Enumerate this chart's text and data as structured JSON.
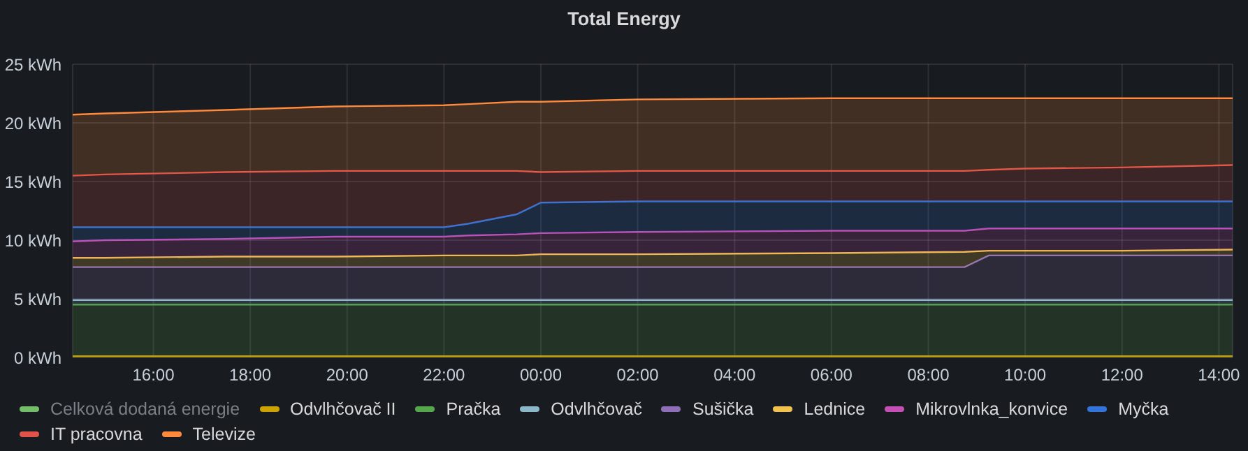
{
  "chart_data": {
    "type": "area",
    "title": "Total Energy",
    "stacked": true,
    "x": [
      "--01-01T14:20",
      "--01-01T15:00",
      "--01-01T17:30",
      "--01-01T19:45",
      "--01-01T22:00",
      "--01-01T22:30",
      "--01-01T23:30",
      "--01-02T00:00",
      "--01-02T02:00",
      "--01-02T06:00",
      "--01-02T08:45",
      "--01-02T09:15",
      "--01-02T10:00",
      "--01-02T12:00",
      "--01-02T14:17"
    ],
    "xlim": [
      "--01-01T14:20",
      "--01-02T14:17"
    ],
    "xticks": [
      {
        "value": "--01-01T16:00",
        "label": "16:00"
      },
      {
        "value": "--01-01T18:00",
        "label": "18:00"
      },
      {
        "value": "--01-01T20:00",
        "label": "20:00"
      },
      {
        "value": "--01-01T22:00",
        "label": "22:00"
      },
      {
        "value": "--01-02T00:00",
        "label": "00:00"
      },
      {
        "value": "--01-02T02:00",
        "label": "02:00"
      },
      {
        "value": "--01-02T04:00",
        "label": "04:00"
      },
      {
        "value": "--01-02T06:00",
        "label": "06:00"
      },
      {
        "value": "--01-02T08:00",
        "label": "08:00"
      },
      {
        "value": "--01-02T10:00",
        "label": "10:00"
      },
      {
        "value": "--01-02T12:00",
        "label": "12:00"
      },
      {
        "value": "--01-02T14:00",
        "label": "14:00"
      }
    ],
    "ylim": [
      0,
      25
    ],
    "yticks": [
      {
        "value": 0,
        "label": "0 kWh"
      },
      {
        "value": 5,
        "label": "5 kWh"
      },
      {
        "value": 10,
        "label": "10 kWh"
      },
      {
        "value": 15,
        "label": "15 kWh"
      },
      {
        "value": 20,
        "label": "20 kWh"
      },
      {
        "value": 25,
        "label": "25 kWh"
      }
    ],
    "grid": true,
    "legend": "bottom",
    "series": [
      {
        "name": "Celková dodaná energie",
        "color": "#73bf69",
        "values": [
          null,
          null,
          null,
          null,
          null,
          null,
          null,
          null,
          null,
          null,
          null,
          null,
          null,
          null,
          null
        ]
      },
      {
        "name": "Odvlhčovač II",
        "color": "#cca300",
        "values": [
          0.1,
          0.1,
          0.1,
          0.1,
          0.1,
          0.1,
          0.1,
          0.1,
          0.1,
          0.1,
          0.1,
          0.1,
          0.1,
          0.1,
          0.1
        ]
      },
      {
        "name": "Pračka",
        "color": "#56a64b",
        "values": [
          4.4,
          4.4,
          4.4,
          4.4,
          4.4,
          4.4,
          4.4,
          4.4,
          4.4,
          4.4,
          4.4,
          4.4,
          4.4,
          4.4,
          4.4
        ]
      },
      {
        "name": "Odvlhčovač",
        "color": "#8ab8c8",
        "values": [
          0.4,
          0.4,
          0.4,
          0.4,
          0.4,
          0.4,
          0.4,
          0.4,
          0.4,
          0.4,
          0.4,
          0.4,
          0.4,
          0.4,
          0.4
        ]
      },
      {
        "name": "Sušička",
        "color": "#8f6fb8",
        "values": [
          2.8,
          2.8,
          2.8,
          2.8,
          2.8,
          2.8,
          2.8,
          2.8,
          2.8,
          2.8,
          2.8,
          3.8,
          3.8,
          3.8,
          3.8
        ]
      },
      {
        "name": "Lednice",
        "color": "#f2c14e",
        "values": [
          0.8,
          0.8,
          0.9,
          0.9,
          1.0,
          1.0,
          1.0,
          1.1,
          1.1,
          1.2,
          1.3,
          0.4,
          0.4,
          0.4,
          0.5
        ]
      },
      {
        "name": "Mikrovlnka_konvice",
        "color": "#c64fb5",
        "values": [
          1.4,
          1.5,
          1.5,
          1.7,
          1.6,
          1.7,
          1.8,
          1.8,
          1.9,
          1.9,
          1.8,
          1.9,
          1.9,
          1.9,
          1.8
        ]
      },
      {
        "name": "Myčka",
        "color": "#3274d9",
        "values": [
          1.2,
          1.1,
          1.0,
          0.8,
          0.8,
          1.0,
          1.7,
          2.6,
          2.6,
          2.5,
          2.5,
          2.3,
          2.3,
          2.3,
          2.3
        ]
      },
      {
        "name": "IT pracovna",
        "color": "#e0524a",
        "values": [
          4.4,
          4.5,
          4.7,
          4.8,
          4.8,
          4.5,
          3.7,
          2.6,
          2.6,
          2.6,
          2.6,
          2.7,
          2.8,
          2.9,
          3.1
        ]
      },
      {
        "name": "Televize",
        "color": "#ff8a3d",
        "values": [
          5.2,
          5.2,
          5.3,
          5.5,
          5.6,
          5.7,
          5.9,
          6.0,
          6.1,
          6.2,
          6.2,
          6.1,
          6.0,
          5.9,
          5.7
        ]
      }
    ]
  }
}
